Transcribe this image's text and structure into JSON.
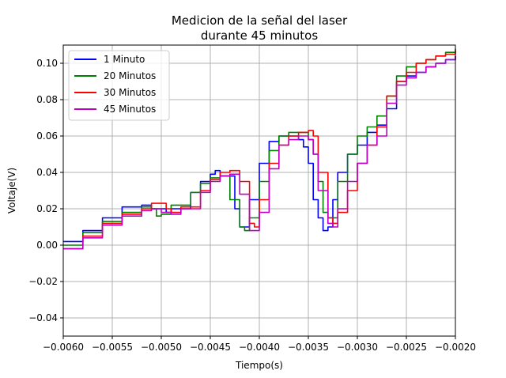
{
  "chart_data": {
    "type": "line",
    "title_lines": [
      "Medicion de la señal del laser",
      "durante 45 minutos"
    ],
    "xlabel": "Tiempo(s)",
    "ylabel": "Voltaje(V)",
    "xlim": [
      -0.006,
      -0.002
    ],
    "ylim": [
      -0.05,
      0.11
    ],
    "x_ticks": [
      -0.006,
      -0.0055,
      -0.005,
      -0.0045,
      -0.004,
      -0.0035,
      -0.003,
      -0.0025,
      -0.002
    ],
    "x_tick_labels": [
      "−0.0060",
      "−0.0055",
      "−0.0050",
      "−0.0045",
      "−0.0040",
      "−0.0035",
      "−0.0030",
      "−0.0025",
      "−0.0020"
    ],
    "y_ticks": [
      -0.04,
      -0.02,
      0.0,
      0.02,
      0.04,
      0.06,
      0.08,
      0.1
    ],
    "y_tick_labels": [
      "−0.04",
      "−0.02",
      "0.00",
      "0.02",
      "0.04",
      "0.06",
      "0.08",
      "0.10"
    ],
    "grid": true,
    "legend_position": "top-left",
    "series": [
      {
        "name": "1 Minuto",
        "color": "#0000ff",
        "x": [
          -0.006,
          -0.0058,
          -0.0056,
          -0.0054,
          -0.0052,
          -0.0051,
          -0.00495,
          -0.0049,
          -0.0047,
          -0.0046,
          -0.0045,
          -0.00445,
          -0.0044,
          -0.00425,
          -0.0042,
          -0.00415,
          -0.0041,
          -0.004,
          -0.0039,
          -0.0038,
          -0.0037,
          -0.0036,
          -0.00355,
          -0.0035,
          -0.00345,
          -0.0034,
          -0.00335,
          -0.0033,
          -0.00325,
          -0.0032,
          -0.0031,
          -0.003,
          -0.0029,
          -0.0028,
          -0.0027,
          -0.0026,
          -0.0025,
          -0.0024,
          -0.0023,
          -0.0022,
          -0.0021,
          -0.002
        ],
        "y": [
          0.002,
          0.008,
          0.015,
          0.021,
          0.022,
          0.02,
          0.018,
          0.02,
          0.029,
          0.035,
          0.039,
          0.041,
          0.038,
          0.02,
          0.01,
          0.01,
          0.025,
          0.045,
          0.057,
          0.06,
          0.06,
          0.058,
          0.054,
          0.045,
          0.025,
          0.015,
          0.008,
          0.01,
          0.025,
          0.04,
          0.05,
          0.055,
          0.062,
          0.066,
          0.075,
          0.09,
          0.093,
          0.095,
          0.098,
          0.1,
          0.102,
          0.104
        ]
      },
      {
        "name": "20 Minutos",
        "color": "#008000",
        "x": [
          -0.006,
          -0.0058,
          -0.0056,
          -0.0054,
          -0.0052,
          -0.0051,
          -0.00505,
          -0.005,
          -0.0049,
          -0.0047,
          -0.0046,
          -0.0045,
          -0.0044,
          -0.0043,
          -0.0042,
          -0.00415,
          -0.0041,
          -0.004,
          -0.0039,
          -0.0038,
          -0.0037,
          -0.0036,
          -0.0035,
          -0.00345,
          -0.0034,
          -0.00335,
          -0.0033,
          -0.0032,
          -0.0031,
          -0.003,
          -0.0029,
          -0.0028,
          -0.0027,
          -0.0026,
          -0.0025,
          -0.0024,
          -0.0023,
          -0.0022,
          -0.0021,
          -0.002
        ],
        "y": [
          0.0,
          0.007,
          0.013,
          0.018,
          0.021,
          0.02,
          0.016,
          0.017,
          0.022,
          0.029,
          0.034,
          0.037,
          0.038,
          0.025,
          0.01,
          0.008,
          0.015,
          0.035,
          0.052,
          0.06,
          0.062,
          0.062,
          0.058,
          0.05,
          0.035,
          0.018,
          0.015,
          0.035,
          0.05,
          0.06,
          0.065,
          0.071,
          0.082,
          0.093,
          0.098,
          0.1,
          0.102,
          0.104,
          0.106,
          0.108
        ]
      },
      {
        "name": "30 Minutos",
        "color": "#ff0000",
        "x": [
          -0.006,
          -0.0058,
          -0.0056,
          -0.0054,
          -0.0052,
          -0.0051,
          -0.00495,
          -0.0049,
          -0.0048,
          -0.0046,
          -0.0045,
          -0.0044,
          -0.0043,
          -0.0042,
          -0.0041,
          -0.00405,
          -0.004,
          -0.0039,
          -0.0038,
          -0.0037,
          -0.0036,
          -0.0035,
          -0.00345,
          -0.0034,
          -0.0033,
          -0.00325,
          -0.0032,
          -0.0031,
          -0.003,
          -0.0029,
          -0.0028,
          -0.0027,
          -0.0026,
          -0.0025,
          -0.0024,
          -0.0023,
          -0.0022,
          -0.0021,
          -0.002
        ],
        "y": [
          -0.002,
          0.005,
          0.012,
          0.017,
          0.02,
          0.023,
          0.02,
          0.018,
          0.021,
          0.03,
          0.036,
          0.04,
          0.041,
          0.035,
          0.012,
          0.01,
          0.025,
          0.045,
          0.055,
          0.06,
          0.062,
          0.063,
          0.06,
          0.04,
          0.015,
          0.012,
          0.018,
          0.03,
          0.045,
          0.055,
          0.065,
          0.082,
          0.09,
          0.095,
          0.1,
          0.102,
          0.104,
          0.105,
          0.107
        ]
      },
      {
        "name": "45 Minutos",
        "color": "#c000c0",
        "x": [
          -0.006,
          -0.0058,
          -0.0056,
          -0.0054,
          -0.0052,
          -0.0051,
          -0.005,
          -0.0049,
          -0.0048,
          -0.0046,
          -0.0045,
          -0.0044,
          -0.0043,
          -0.0042,
          -0.0041,
          -0.004,
          -0.0039,
          -0.0038,
          -0.0037,
          -0.0036,
          -0.0035,
          -0.00345,
          -0.0034,
          -0.0033,
          -0.00325,
          -0.0032,
          -0.0031,
          -0.003,
          -0.0029,
          -0.0028,
          -0.0027,
          -0.0026,
          -0.0025,
          -0.0024,
          -0.0023,
          -0.0022,
          -0.0021,
          -0.002
        ],
        "y": [
          -0.002,
          0.004,
          0.011,
          0.016,
          0.019,
          0.02,
          0.018,
          0.017,
          0.02,
          0.029,
          0.035,
          0.038,
          0.039,
          0.028,
          0.008,
          0.018,
          0.042,
          0.055,
          0.058,
          0.06,
          0.058,
          0.05,
          0.03,
          0.012,
          0.01,
          0.02,
          0.035,
          0.045,
          0.055,
          0.06,
          0.078,
          0.088,
          0.092,
          0.095,
          0.098,
          0.1,
          0.102,
          0.104
        ]
      }
    ]
  }
}
